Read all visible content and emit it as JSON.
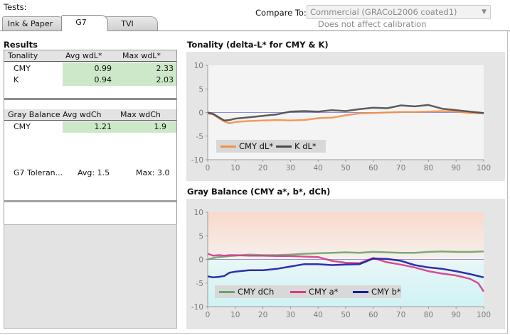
{
  "header": {
    "tests_label": "Tests:",
    "compare_label": "Compare To:",
    "compare_value": "Commercial (GRACoL2006 coated1)",
    "compare_note": "Does not affect calibration"
  },
  "tabs": [
    {
      "label": "Ink & Paper",
      "active": false
    },
    {
      "label": "G7",
      "active": true
    },
    {
      "label": "TVI",
      "active": false
    }
  ],
  "results": {
    "title": "Results",
    "tonality": {
      "headers": [
        "Tonality",
        "Avg wdL*",
        "Max wdL*"
      ],
      "rows": [
        {
          "name": "CMY",
          "avg": "0.99",
          "max": "2.33"
        },
        {
          "name": "K",
          "avg": "0.94",
          "max": "2.03"
        }
      ]
    },
    "gray_balance": {
      "headers": [
        "Gray Balance",
        "Avg wdCh",
        "Max wdCh"
      ],
      "rows": [
        {
          "name": "CMY",
          "avg": "1.21",
          "max": "1.9"
        }
      ]
    },
    "g7_tolerance": {
      "name": "G7 Toleran...",
      "avg": "Avg: 1.5",
      "max": "Max: 3.0"
    }
  },
  "colors": {
    "cmy_dl": "#f2904a",
    "k_dl": "#4a4a4a",
    "cmy_dch": "#6aa36a",
    "cmy_a": "#d53a8a",
    "cmy_b": "#1a1aa8",
    "zero_line": "#9090d8",
    "cell_green": "#cde8c9"
  },
  "chart_data": [
    {
      "type": "line",
      "title": "Tonality (delta-L* for CMY & K)",
      "xlim": [
        0,
        100
      ],
      "ylim": [
        -10,
        10
      ],
      "xticks": [
        0,
        10,
        20,
        30,
        40,
        50,
        60,
        70,
        80,
        90,
        100
      ],
      "yticks": [
        -10,
        -5,
        0,
        5,
        10
      ],
      "legend": "bottom-left",
      "grid": false,
      "series": [
        {
          "name": "CMY dL*",
          "color": "#f2904a",
          "x": [
            0,
            2,
            4,
            6,
            8,
            10,
            15,
            20,
            25,
            30,
            35,
            40,
            45,
            50,
            55,
            60,
            65,
            70,
            75,
            80,
            85,
            90,
            95,
            100
          ],
          "y": [
            -0.2,
            -0.4,
            -1.2,
            -1.9,
            -2.3,
            -2.0,
            -1.8,
            -1.7,
            -1.6,
            -1.7,
            -1.6,
            -1.2,
            -1.1,
            -0.6,
            -0.2,
            -0.1,
            0.0,
            0.1,
            0.1,
            0.2,
            0.3,
            0.2,
            -0.1,
            -0.2
          ]
        },
        {
          "name": "K dL*",
          "color": "#4a4a4a",
          "x": [
            0,
            2,
            4,
            6,
            8,
            10,
            15,
            20,
            25,
            30,
            35,
            40,
            45,
            50,
            55,
            60,
            65,
            70,
            75,
            80,
            85,
            90,
            95,
            100
          ],
          "y": [
            0.0,
            -0.3,
            -1.0,
            -1.7,
            -1.6,
            -1.3,
            -1.0,
            -0.7,
            -0.4,
            0.2,
            0.3,
            0.2,
            0.5,
            0.3,
            0.7,
            1.0,
            0.9,
            1.5,
            1.3,
            1.6,
            0.8,
            0.5,
            0.2,
            -0.1
          ]
        }
      ]
    },
    {
      "type": "line",
      "title": "Gray Balance (CMY a*, b*, dCh)",
      "xlim": [
        0,
        100
      ],
      "ylim": [
        -10,
        10
      ],
      "xticks": [
        0,
        10,
        20,
        30,
        40,
        50,
        60,
        70,
        80,
        90,
        100
      ],
      "yticks": [
        -10,
        -5,
        0,
        5,
        10
      ],
      "legend": "bottom-left",
      "grid": false,
      "series": [
        {
          "name": "CMY dCh",
          "color": "#6aa36a",
          "x": [
            0,
            2,
            4,
            6,
            8,
            10,
            15,
            20,
            25,
            30,
            35,
            40,
            45,
            50,
            55,
            60,
            65,
            70,
            75,
            80,
            85,
            90,
            95,
            100
          ],
          "y": [
            0.0,
            0.3,
            0.5,
            0.6,
            0.7,
            0.8,
            1.0,
            0.9,
            0.9,
            1.0,
            1.2,
            1.3,
            1.4,
            1.5,
            1.4,
            1.6,
            1.5,
            1.4,
            1.4,
            1.6,
            1.7,
            1.6,
            1.6,
            1.7
          ]
        },
        {
          "name": "CMY a*",
          "color": "#d53a8a",
          "x": [
            0,
            2,
            4,
            6,
            8,
            10,
            15,
            20,
            25,
            30,
            35,
            40,
            45,
            50,
            55,
            60,
            65,
            70,
            75,
            80,
            85,
            90,
            95,
            98,
            100
          ],
          "y": [
            1.2,
            0.8,
            0.9,
            0.8,
            0.9,
            0.9,
            0.8,
            0.8,
            0.7,
            0.7,
            0.6,
            0.5,
            -0.3,
            -0.7,
            -0.8,
            0.3,
            -0.6,
            -1.1,
            -1.7,
            -2.5,
            -3.0,
            -3.4,
            -4.1,
            -5.0,
            -6.8
          ]
        },
        {
          "name": "CMY b*",
          "color": "#1a1aa8",
          "x": [
            0,
            2,
            4,
            6,
            8,
            10,
            15,
            20,
            25,
            30,
            35,
            40,
            45,
            50,
            55,
            60,
            65,
            70,
            75,
            80,
            85,
            90,
            95,
            100
          ],
          "y": [
            -3.6,
            -3.8,
            -3.7,
            -3.5,
            -2.8,
            -2.6,
            -2.3,
            -2.3,
            -2.0,
            -1.5,
            -1.0,
            -1.0,
            -1.2,
            -1.1,
            -1.0,
            0.2,
            0.1,
            -0.3,
            -1.2,
            -1.7,
            -2.0,
            -2.5,
            -3.1,
            -3.8
          ]
        }
      ]
    }
  ]
}
